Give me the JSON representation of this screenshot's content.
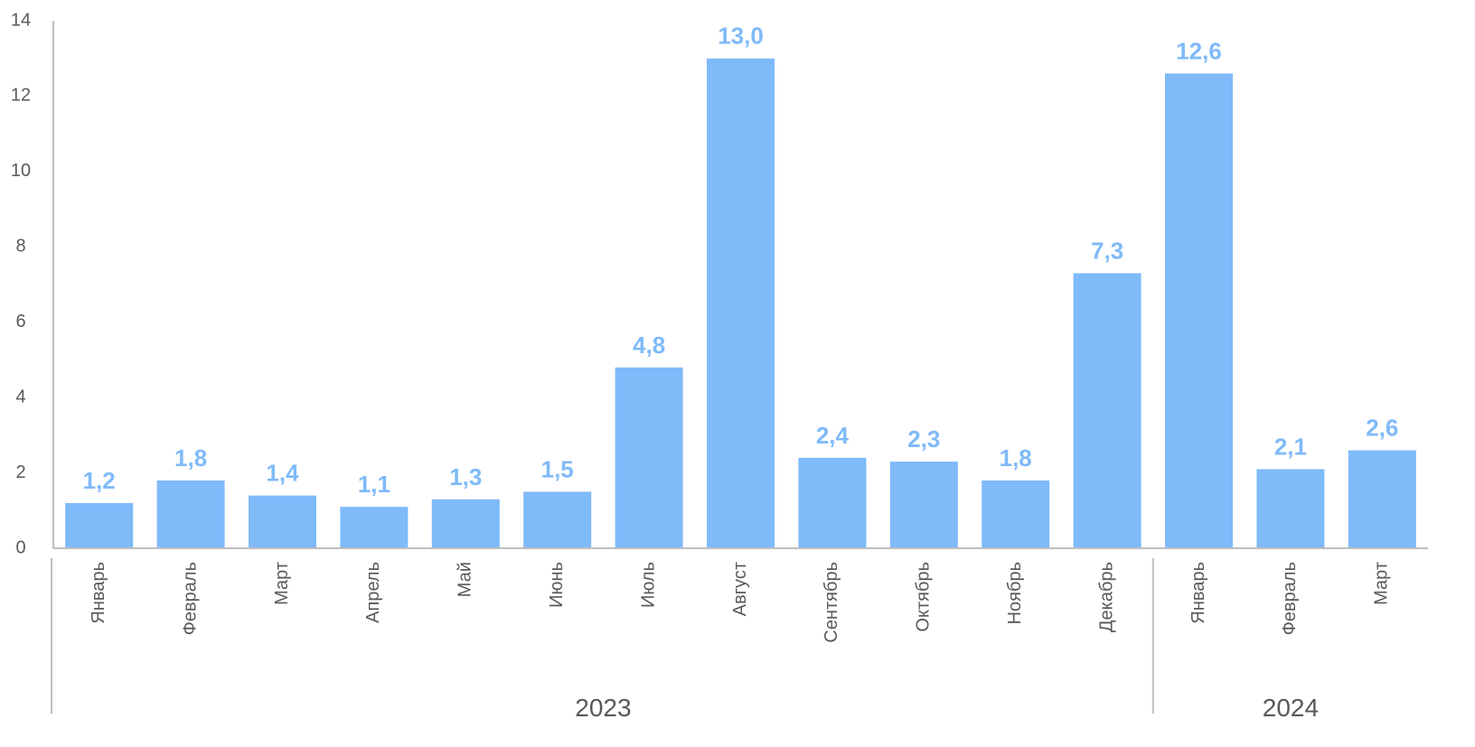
{
  "chart_data": {
    "type": "bar",
    "categories": [
      "Январь",
      "Февраль",
      "Март",
      "Апрель",
      "Май",
      "Июнь",
      "Июль",
      "Август",
      "Сентябрь",
      "Октябрь",
      "Ноябрь",
      "Декабрь",
      "Январь",
      "Февраль",
      "Март"
    ],
    "values": [
      1.2,
      1.8,
      1.4,
      1.1,
      1.3,
      1.5,
      4.8,
      13.0,
      2.4,
      2.3,
      1.8,
      7.3,
      12.6,
      2.1,
      2.6
    ],
    "data_labels": [
      "1,2",
      "1,8",
      "1,4",
      "1,1",
      "1,3",
      "1,5",
      "4,8",
      "13,0",
      "2,4",
      "2,3",
      "1,8",
      "7,3",
      "12,6",
      "2,1",
      "2,6"
    ],
    "groups": [
      {
        "label": "2023",
        "count": 12
      },
      {
        "label": "2024",
        "count": 3
      }
    ],
    "ylim": [
      0,
      14
    ],
    "yticks": [
      0,
      2,
      4,
      6,
      8,
      10,
      12,
      14
    ],
    "title": "",
    "xlabel": "",
    "ylabel": "",
    "grid": false,
    "bar_color": "#7fbaf9",
    "label_color": "#7fbaf9",
    "axis_color": "#bfbfbf",
    "tick_color": "#595959"
  }
}
